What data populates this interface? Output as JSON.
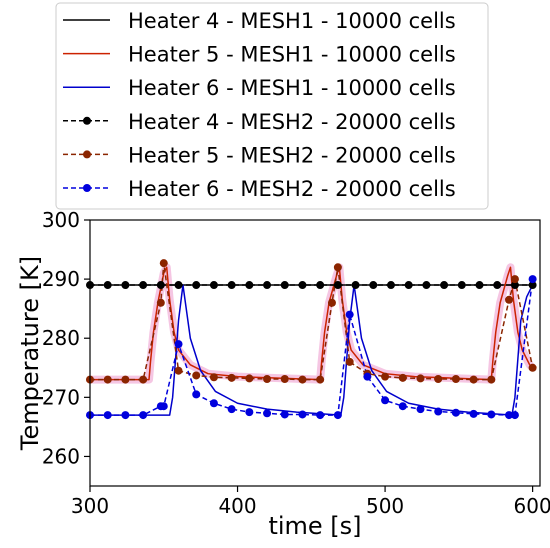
{
  "chart_data": {
    "type": "line",
    "title": "",
    "xlabel": "time [s]",
    "ylabel": "Temperature [K]",
    "xlim": [
      300,
      605
    ],
    "ylim": [
      255,
      300
    ],
    "xticks": [
      300,
      400,
      500,
      600
    ],
    "yticks": [
      260,
      270,
      280,
      290,
      300
    ],
    "grid": false,
    "legend_position": "top",
    "series": [
      {
        "name": "Heater 4 - MESH1 - 10000 cells",
        "color": "#000000",
        "style": "solid",
        "x": [
          300,
          600
        ],
        "y": [
          289,
          289
        ]
      },
      {
        "name": "Heater 5 - MESH1 - 10000 cells",
        "color": "#cc2200",
        "style": "solid",
        "x": [
          300,
          340,
          341,
          343,
          346,
          350,
          352,
          354,
          357,
          360,
          368,
          380,
          400,
          456,
          457,
          459,
          462,
          467,
          469,
          471,
          474,
          477,
          485,
          500,
          520,
          572,
          573,
          575,
          578,
          583,
          585,
          587,
          590,
          593,
          598,
          600
        ],
        "y": [
          273,
          273,
          276,
          281,
          286,
          291,
          292,
          286.5,
          281,
          278,
          275.5,
          274,
          273.5,
          273,
          276,
          281,
          286,
          290.5,
          292,
          286.5,
          281,
          278,
          275.5,
          274,
          273.5,
          273,
          276,
          281,
          286,
          290.5,
          292,
          286.5,
          281,
          278,
          275.5,
          275
        ]
      },
      {
        "name": "Heater 6 - MESH1 - 10000 cells",
        "color": "#0000cc",
        "style": "solid",
        "x": [
          300,
          354,
          356,
          360,
          363,
          368,
          375,
          385,
          400,
          420,
          440,
          470,
          472,
          476,
          479,
          484,
          491,
          501,
          516,
          536,
          556,
          586,
          588,
          592,
          596,
          600
        ],
        "y": [
          267,
          267,
          270,
          283,
          289,
          280,
          274.5,
          271,
          269,
          268,
          267.5,
          267,
          270,
          283,
          289,
          280,
          274.5,
          271,
          269,
          268,
          267.5,
          267,
          270,
          283,
          287,
          289
        ]
      },
      {
        "name": "Heater 4 - MESH2 - 20000 cells",
        "color": "#000000",
        "style": "dashed",
        "marker": "circle",
        "x": [
          300,
          312,
          324,
          336,
          348,
          360,
          372,
          384,
          396,
          408,
          420,
          432,
          444,
          456,
          468,
          480,
          492,
          504,
          516,
          528,
          540,
          552,
          564,
          576,
          588,
          600
        ],
        "y": [
          289,
          289,
          289,
          289,
          289,
          289,
          289,
          289,
          289,
          289,
          289,
          289,
          289,
          289,
          289,
          289,
          289,
          289,
          289,
          289,
          289,
          289,
          289,
          289,
          289,
          289
        ]
      },
      {
        "name": "Heater 5 - MESH2 - 20000 cells",
        "color": "#8b2500",
        "style": "dashed",
        "marker": "circle",
        "x": [
          300,
          312,
          324,
          336,
          348,
          350,
          360,
          372,
          384,
          396,
          408,
          420,
          432,
          444,
          456,
          464,
          468,
          476,
          488,
          500,
          512,
          524,
          536,
          548,
          560,
          572,
          584,
          588,
          600
        ],
        "y": [
          273,
          273,
          273,
          273,
          286,
          292.7,
          274.5,
          273.7,
          273.4,
          273.3,
          273.2,
          273.1,
          273.1,
          273,
          273,
          286,
          292,
          276,
          274,
          273.5,
          273.3,
          273.2,
          273.1,
          273.1,
          273,
          273,
          286.5,
          290,
          275
        ]
      },
      {
        "name": "Heater 6 - MESH2 - 20000 cells",
        "color": "#0000dd",
        "style": "dashed",
        "marker": "circle",
        "x": [
          300,
          312,
          324,
          336,
          348,
          350,
          360,
          372,
          384,
          396,
          408,
          420,
          432,
          444,
          456,
          468,
          476,
          488,
          500,
          512,
          524,
          536,
          548,
          560,
          572,
          584,
          588,
          600
        ],
        "y": [
          267,
          267,
          267,
          267,
          268.5,
          268.5,
          279,
          270.5,
          269,
          268,
          267.5,
          267.3,
          267.1,
          267.1,
          267,
          267,
          284,
          273.5,
          269.5,
          268.5,
          268,
          267.6,
          267.4,
          267.2,
          267.1,
          267,
          267,
          290
        ]
      }
    ]
  }
}
